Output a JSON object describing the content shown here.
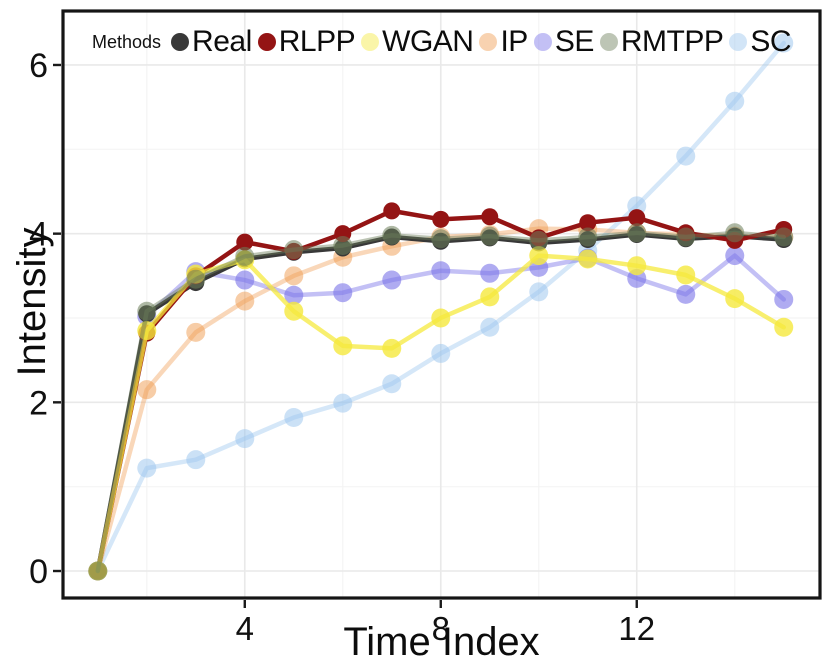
{
  "figure": {
    "background": "#ffffff",
    "panel_border_color": "#151515",
    "grid_major_color": "#e9e9e9",
    "grid_minor_color": "#f4f4f4",
    "tick_color": "#1a1a1a",
    "tick_label_color": "#1a1a1a"
  },
  "legend": {
    "title": "Methods",
    "position": "top-inside"
  },
  "chart_data": {
    "type": "line",
    "title": "",
    "xlabel": "Time Index",
    "ylabel": "Intensity",
    "legend_title": "Methods",
    "legend_position": "top-inside",
    "grid": true,
    "x": [
      1,
      2,
      3,
      4,
      5,
      6,
      7,
      8,
      9,
      10,
      11,
      12,
      13,
      14,
      15
    ],
    "xlim": [
      0.29,
      15.74
    ],
    "ylim": [
      -0.32,
      6.64
    ],
    "x_ticks": [
      4,
      8,
      12
    ],
    "y_ticks": [
      0,
      2,
      4,
      6
    ],
    "x_grid_minor": [
      2,
      6,
      10,
      14
    ],
    "y_grid_minor": [
      1,
      3,
      5
    ],
    "series": [
      {
        "name": "Real",
        "color": "#383838",
        "line_opacity": 1.0,
        "dot_opacity": 1.0,
        "values": [
          0,
          3.05,
          3.42,
          3.7,
          3.78,
          3.83,
          3.96,
          3.91,
          3.95,
          3.89,
          3.93,
          3.99,
          3.94,
          3.97,
          3.93
        ]
      },
      {
        "name": "RLPP",
        "color": "#941414",
        "line_opacity": 1.0,
        "dot_opacity": 1.0,
        "values": [
          0,
          2.82,
          3.5,
          3.9,
          3.79,
          4.0,
          4.27,
          4.17,
          4.2,
          3.95,
          4.13,
          4.19,
          4.01,
          3.92,
          4.05
        ]
      },
      {
        "name": "WGAN",
        "color": "#f5e93d",
        "line_opacity": 0.75,
        "dot_opacity": 0.8,
        "values": [
          0,
          2.85,
          3.52,
          3.69,
          3.08,
          2.67,
          2.64,
          3.0,
          3.25,
          3.74,
          3.7,
          3.62,
          3.51,
          3.23,
          2.89
        ]
      },
      {
        "name": "IP",
        "color": "#ef9c50",
        "line_opacity": 0.4,
        "dot_opacity": 0.5,
        "values": [
          0,
          2.15,
          2.83,
          3.2,
          3.5,
          3.72,
          3.85,
          3.96,
          3.99,
          4.06,
          4.05,
          4.01,
          3.99,
          3.97,
          3.96
        ]
      },
      {
        "name": "SE",
        "color": "#7a73e8",
        "line_opacity": 0.45,
        "dot_opacity": 0.6,
        "values": [
          0,
          3.02,
          3.55,
          3.45,
          3.27,
          3.3,
          3.45,
          3.56,
          3.53,
          3.6,
          3.71,
          3.47,
          3.28,
          3.74,
          3.22
        ]
      },
      {
        "name": "RMTPP",
        "color": "#6c7e5a",
        "line_opacity": 0.45,
        "dot_opacity": 0.55,
        "values": [
          0,
          3.08,
          3.46,
          3.73,
          3.81,
          3.86,
          3.98,
          3.94,
          3.97,
          3.92,
          3.96,
          4.01,
          3.96,
          4.01,
          3.96
        ]
      },
      {
        "name": "SC",
        "color": "#9cc6ee",
        "line_opacity": 0.42,
        "dot_opacity": 0.52,
        "values": [
          0,
          1.22,
          1.32,
          1.57,
          1.82,
          1.99,
          2.22,
          2.58,
          2.89,
          3.31,
          3.8,
          4.33,
          4.92,
          5.57,
          6.26
        ]
      }
    ],
    "draw_order": [
      "SC",
      "IP",
      "SE",
      "Real",
      "RLPP",
      "WGAN",
      "RMTPP"
    ]
  }
}
